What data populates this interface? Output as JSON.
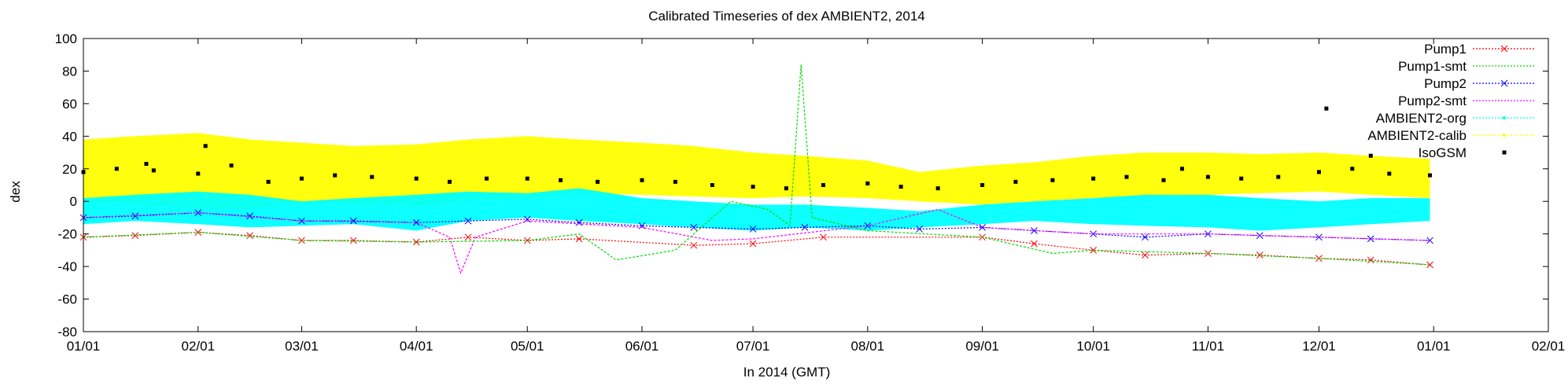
{
  "chart_data": {
    "type": "line",
    "title": "Calibrated Timeseries of dex AMBIENT2, 2014",
    "xlabel": "In 2014 (GMT)",
    "ylabel": "dex",
    "ylim": [
      -80,
      100
    ],
    "yticks": [
      -80,
      -60,
      -40,
      -20,
      0,
      20,
      40,
      60,
      80,
      100
    ],
    "xlim": [
      "2014-01-01",
      "2015-02-01"
    ],
    "xticks": [
      {
        "date": "2014-01-01",
        "label": "01/01"
      },
      {
        "date": "2014-02-01",
        "label": "02/01"
      },
      {
        "date": "2014-03-01",
        "label": "03/01"
      },
      {
        "date": "2014-04-01",
        "label": "04/01"
      },
      {
        "date": "2014-05-01",
        "label": "05/01"
      },
      {
        "date": "2014-06-01",
        "label": "06/01"
      },
      {
        "date": "2014-07-01",
        "label": "07/01"
      },
      {
        "date": "2014-08-01",
        "label": "08/01"
      },
      {
        "date": "2014-09-01",
        "label": "09/01"
      },
      {
        "date": "2014-10-01",
        "label": "10/01"
      },
      {
        "date": "2014-11-01",
        "label": "11/01"
      },
      {
        "date": "2014-12-01",
        "label": "12/01"
      },
      {
        "date": "2015-01-01",
        "label": "01/01"
      },
      {
        "date": "2015-02-01",
        "label": "02/01"
      }
    ],
    "grid": false,
    "legend_position": "top-right",
    "series": [
      {
        "name": "AMBIENT2-calib",
        "color": "#ffff00",
        "style": "band",
        "points": [
          [
            "2014-01-01",
            0,
            38
          ],
          [
            "2014-01-15",
            -2,
            40
          ],
          [
            "2014-02-01",
            -4,
            42
          ],
          [
            "2014-02-15",
            -5,
            38
          ],
          [
            "2014-03-01",
            0,
            36
          ],
          [
            "2014-03-15",
            -2,
            34
          ],
          [
            "2014-04-01",
            -3,
            35
          ],
          [
            "2014-04-15",
            0,
            38
          ],
          [
            "2014-05-01",
            2,
            40
          ],
          [
            "2014-05-15",
            5,
            38
          ],
          [
            "2014-06-01",
            4,
            36
          ],
          [
            "2014-06-15",
            3,
            34
          ],
          [
            "2014-07-01",
            2,
            30
          ],
          [
            "2014-07-15",
            3,
            28
          ],
          [
            "2014-08-01",
            2,
            25
          ],
          [
            "2014-08-15",
            0,
            18
          ],
          [
            "2014-09-01",
            -2,
            22
          ],
          [
            "2014-09-15",
            0,
            24
          ],
          [
            "2014-10-01",
            2,
            28
          ],
          [
            "2014-10-15",
            3,
            30
          ],
          [
            "2014-11-01",
            4,
            30
          ],
          [
            "2014-11-15",
            5,
            29
          ],
          [
            "2014-12-01",
            6,
            30
          ],
          [
            "2014-12-15",
            4,
            28
          ],
          [
            "2014-12-31",
            2,
            26
          ]
        ]
      },
      {
        "name": "AMBIENT2-org",
        "color": "#00ffff",
        "style": "band",
        "points": [
          [
            "2014-01-01",
            -14,
            2
          ],
          [
            "2014-01-15",
            -12,
            4
          ],
          [
            "2014-02-01",
            -14,
            6
          ],
          [
            "2014-02-15",
            -16,
            4
          ],
          [
            "2014-03-01",
            -15,
            0
          ],
          [
            "2014-03-15",
            -14,
            2
          ],
          [
            "2014-04-01",
            -18,
            4
          ],
          [
            "2014-04-15",
            -12,
            6
          ],
          [
            "2014-05-01",
            -10,
            5
          ],
          [
            "2014-05-15",
            -12,
            8
          ],
          [
            "2014-06-01",
            -14,
            2
          ],
          [
            "2014-06-15",
            -16,
            0
          ],
          [
            "2014-07-01",
            -18,
            -2
          ],
          [
            "2014-07-15",
            -16,
            -2
          ],
          [
            "2014-08-01",
            -18,
            -4
          ],
          [
            "2014-08-15",
            -16,
            -6
          ],
          [
            "2014-09-01",
            -14,
            -2
          ],
          [
            "2014-09-15",
            -12,
            0
          ],
          [
            "2014-10-01",
            -14,
            2
          ],
          [
            "2014-10-15",
            -15,
            4
          ],
          [
            "2014-11-01",
            -16,
            4
          ],
          [
            "2014-11-15",
            -18,
            2
          ],
          [
            "2014-12-01",
            -16,
            0
          ],
          [
            "2014-12-15",
            -14,
            2
          ],
          [
            "2014-12-31",
            -12,
            2
          ]
        ]
      },
      {
        "name": "Pump2",
        "color": "#0000ff",
        "style": "points-line",
        "points": [
          [
            "2014-01-01",
            -10
          ],
          [
            "2014-01-15",
            -9
          ],
          [
            "2014-02-01",
            -7
          ],
          [
            "2014-02-15",
            -9
          ],
          [
            "2014-03-01",
            -12
          ],
          [
            "2014-03-15",
            -12
          ],
          [
            "2014-04-01",
            -13
          ],
          [
            "2014-04-15",
            -12
          ],
          [
            "2014-05-01",
            -11
          ],
          [
            "2014-05-15",
            -13
          ],
          [
            "2014-06-01",
            -15
          ],
          [
            "2014-06-15",
            -16
          ],
          [
            "2014-07-01",
            -17
          ],
          [
            "2014-07-15",
            -16
          ],
          [
            "2014-08-01",
            -15
          ],
          [
            "2014-08-15",
            -17
          ],
          [
            "2014-09-01",
            -16
          ],
          [
            "2014-09-15",
            -18
          ],
          [
            "2014-10-01",
            -20
          ],
          [
            "2014-10-15",
            -22
          ],
          [
            "2014-11-01",
            -20
          ],
          [
            "2014-11-15",
            -21
          ],
          [
            "2014-12-01",
            -22
          ],
          [
            "2014-12-15",
            -23
          ],
          [
            "2014-12-31",
            -24
          ]
        ]
      },
      {
        "name": "Pump2-smt",
        "color": "#ff00ff",
        "style": "line",
        "points": [
          [
            "2014-01-01",
            -10
          ],
          [
            "2014-02-01",
            -7
          ],
          [
            "2014-03-01",
            -12
          ],
          [
            "2014-04-01",
            -13
          ],
          [
            "2014-04-10",
            -22
          ],
          [
            "2014-04-13",
            -44
          ],
          [
            "2014-04-17",
            -22
          ],
          [
            "2014-05-01",
            -12
          ],
          [
            "2014-06-01",
            -16
          ],
          [
            "2014-06-20",
            -24
          ],
          [
            "2014-07-01",
            -23
          ],
          [
            "2014-08-01",
            -15
          ],
          [
            "2014-08-20",
            -5
          ],
          [
            "2014-09-01",
            -16
          ],
          [
            "2014-10-01",
            -20
          ],
          [
            "2014-11-01",
            -20
          ],
          [
            "2014-12-01",
            -22
          ],
          [
            "2014-12-31",
            -24
          ]
        ]
      },
      {
        "name": "Pump1",
        "color": "#ff0000",
        "style": "points-line",
        "points": [
          [
            "2014-01-01",
            -22
          ],
          [
            "2014-01-15",
            -21
          ],
          [
            "2014-02-01",
            -19
          ],
          [
            "2014-02-15",
            -21
          ],
          [
            "2014-03-01",
            -24
          ],
          [
            "2014-03-15",
            -24
          ],
          [
            "2014-04-01",
            -25
          ],
          [
            "2014-04-15",
            -22
          ],
          [
            "2014-05-01",
            -24
          ],
          [
            "2014-05-15",
            -23
          ],
          [
            "2014-06-15",
            -27
          ],
          [
            "2014-07-01",
            -26
          ],
          [
            "2014-07-20",
            -22
          ],
          [
            "2014-09-01",
            -22
          ],
          [
            "2014-09-15",
            -26
          ],
          [
            "2014-10-01",
            -30
          ],
          [
            "2014-10-15",
            -33
          ],
          [
            "2014-11-01",
            -32
          ],
          [
            "2014-11-15",
            -33
          ],
          [
            "2014-12-01",
            -35
          ],
          [
            "2014-12-15",
            -36
          ],
          [
            "2014-12-31",
            -39
          ]
        ]
      },
      {
        "name": "Pump1-smt",
        "color": "#00dd00",
        "style": "line",
        "points": [
          [
            "2014-01-01",
            -22
          ],
          [
            "2014-02-01",
            -19
          ],
          [
            "2014-03-01",
            -24
          ],
          [
            "2014-04-01",
            -25
          ],
          [
            "2014-05-01",
            -24
          ],
          [
            "2014-05-15",
            -20
          ],
          [
            "2014-05-25",
            -36
          ],
          [
            "2014-06-10",
            -30
          ],
          [
            "2014-06-25",
            0
          ],
          [
            "2014-07-05",
            -5
          ],
          [
            "2014-07-11",
            -15
          ],
          [
            "2014-07-14",
            84
          ],
          [
            "2014-07-17",
            -10
          ],
          [
            "2014-08-01",
            -18
          ],
          [
            "2014-09-01",
            -22
          ],
          [
            "2014-09-20",
            -32
          ],
          [
            "2014-10-01",
            -30
          ],
          [
            "2014-11-01",
            -32
          ],
          [
            "2014-12-01",
            -35
          ],
          [
            "2014-12-31",
            -39
          ]
        ]
      },
      {
        "name": "IsoGSM",
        "color": "#000000",
        "style": "points",
        "points": [
          [
            "2014-01-01",
            18
          ],
          [
            "2014-01-10",
            20
          ],
          [
            "2014-01-20",
            19
          ],
          [
            "2014-02-01",
            17
          ],
          [
            "2014-02-10",
            22
          ],
          [
            "2014-02-20",
            12
          ],
          [
            "2014-03-01",
            14
          ],
          [
            "2014-03-10",
            16
          ],
          [
            "2014-03-20",
            15
          ],
          [
            "2014-04-01",
            14
          ],
          [
            "2014-04-10",
            12
          ],
          [
            "2014-04-20",
            14
          ],
          [
            "2014-05-01",
            14
          ],
          [
            "2014-05-10",
            13
          ],
          [
            "2014-05-20",
            12
          ],
          [
            "2014-06-01",
            13
          ],
          [
            "2014-06-10",
            12
          ],
          [
            "2014-06-20",
            10
          ],
          [
            "2014-07-01",
            9
          ],
          [
            "2014-07-10",
            8
          ],
          [
            "2014-07-20",
            10
          ],
          [
            "2014-08-01",
            11
          ],
          [
            "2014-08-10",
            9
          ],
          [
            "2014-08-20",
            8
          ],
          [
            "2014-09-01",
            10
          ],
          [
            "2014-09-10",
            12
          ],
          [
            "2014-09-20",
            13
          ],
          [
            "2014-10-01",
            14
          ],
          [
            "2014-10-10",
            15
          ],
          [
            "2014-10-20",
            13
          ],
          [
            "2014-11-01",
            15
          ],
          [
            "2014-11-10",
            14
          ],
          [
            "2014-11-20",
            15
          ],
          [
            "2014-12-01",
            18
          ],
          [
            "2014-12-10",
            20
          ],
          [
            "2014-12-20",
            17
          ],
          [
            "2014-12-31",
            16
          ],
          [
            "2014-12-03",
            57
          ],
          [
            "2014-02-03",
            34
          ],
          [
            "2014-12-15",
            28
          ],
          [
            "2014-01-18",
            23
          ],
          [
            "2014-10-25",
            20
          ]
        ]
      }
    ]
  }
}
